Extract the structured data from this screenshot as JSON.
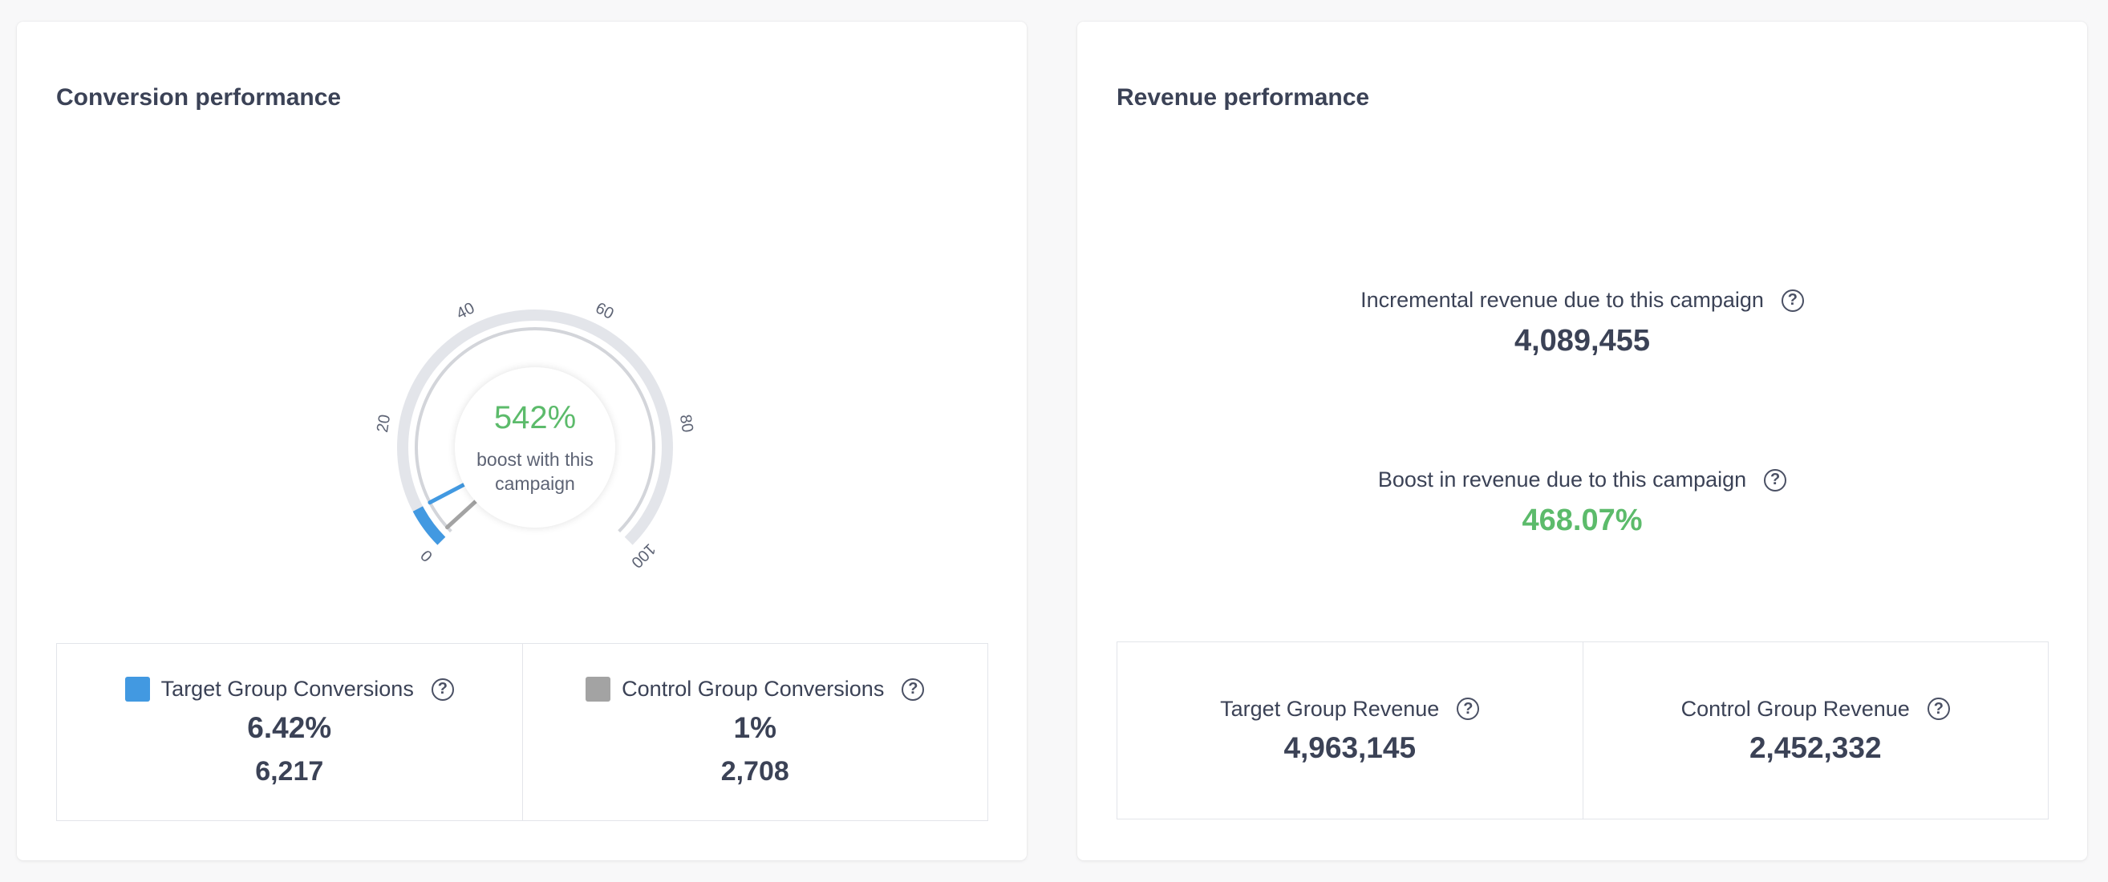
{
  "colors": {
    "target": "#4299e1",
    "control": "#a3a3a3",
    "positive": "#5cbb6b",
    "text": "#3b4256"
  },
  "conversion": {
    "title": "Conversion performance",
    "gauge": {
      "value_label": "542%",
      "caption": "boost with this campaign",
      "ticks": [
        "0",
        "20",
        "40",
        "60",
        "80",
        "100"
      ],
      "target_percent": 6.42,
      "control_percent": 1
    },
    "target": {
      "label": "Target Group Conversions",
      "rate": "6.42%",
      "count": "6,217",
      "help_icon": "question-circle-icon"
    },
    "control": {
      "label": "Control Group Conversions",
      "rate": "1%",
      "count": "2,708",
      "help_icon": "question-circle-icon"
    }
  },
  "revenue": {
    "title": "Revenue performance",
    "incremental": {
      "label": "Incremental revenue due to this campaign",
      "value": "4,089,455"
    },
    "boost": {
      "label": "Boost in revenue due to this campaign",
      "value": "468.07%"
    },
    "target": {
      "label": "Target Group Revenue",
      "value": "4,963,145"
    },
    "control": {
      "label": "Control Group Revenue",
      "value": "2,452,332"
    }
  },
  "help_glyph": "?"
}
